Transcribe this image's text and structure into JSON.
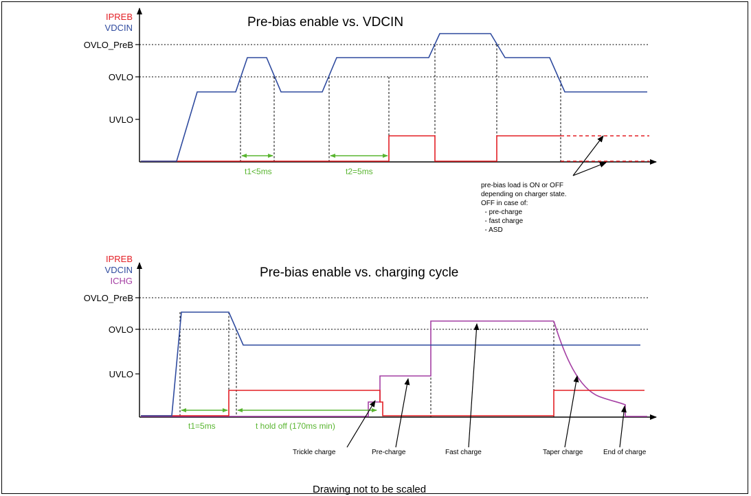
{
  "colors": {
    "ipreb": "#e31e24",
    "vdcin": "#2e4a9e",
    "ichg": "#a43ea3",
    "annotation": "#59b530",
    "axis": "#000000"
  },
  "top": {
    "title": "Pre-bias enable vs. VDCIN",
    "legend": [
      "IPREB",
      "VDCIN"
    ],
    "levels": [
      "OVLO_PreB",
      "OVLO",
      "UVLO"
    ],
    "t1_label": "t1<5ms",
    "t2_label": "t2=5ms",
    "note_lines": [
      "pre-bias load is ON or OFF",
      "depending on charger state.",
      "OFF in case of:",
      "  - pre-charge",
      "  - fast charge",
      "  - ASD"
    ]
  },
  "bottom": {
    "title": "Pre-bias enable vs. charging cycle",
    "legend": [
      "IPREB",
      "VDCIN",
      "ICHG"
    ],
    "levels": [
      "OVLO_PreB",
      "OVLO",
      "UVLO"
    ],
    "t1_label": "t1=5ms",
    "thold_label": "t hold off (170ms min)",
    "phases": [
      "Trickle charge",
      "Pre-charge",
      "Fast charge",
      "Taper charge",
      "End of charge"
    ]
  },
  "footer": "Drawing not to be scaled"
}
